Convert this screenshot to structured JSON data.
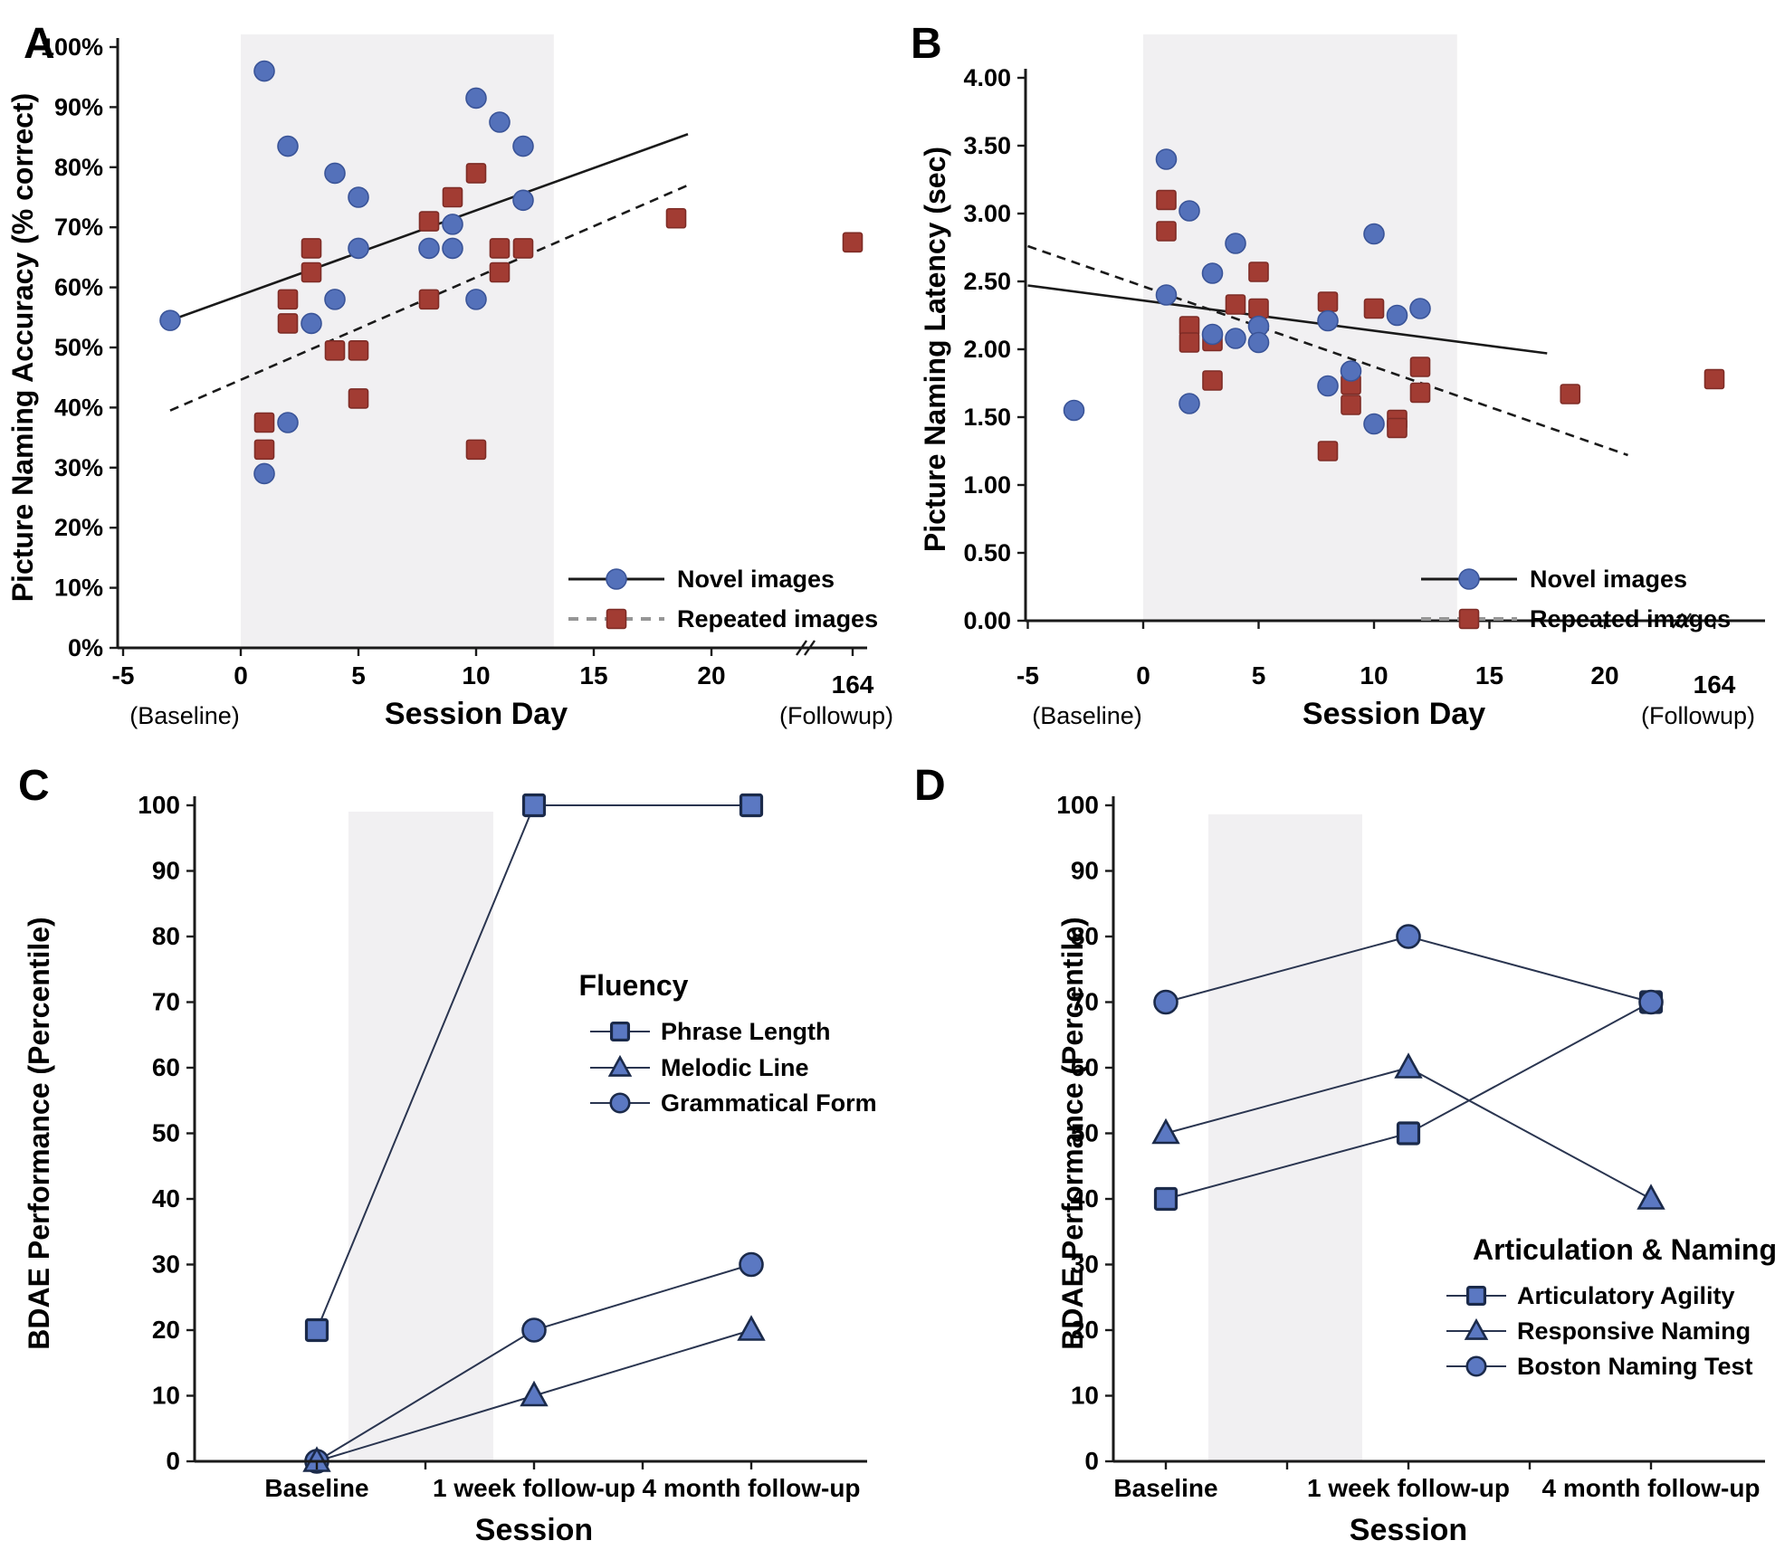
{
  "figure": {
    "background": "#ffffff"
  },
  "colors": {
    "novel_fill": "#5471BA",
    "novel_stroke": "#3A5498",
    "repeated_fill": "#A23C33",
    "repeated_stroke": "#7E2C26",
    "trend_line": "#1a1a1a",
    "legend_dashed": "#969696",
    "band": "#F1F0F2",
    "axis": "#1a1a1a",
    "text": "#000000",
    "bdae_marker_fill": "#5B78C2",
    "bdae_marker_stroke": "#1B2A4A",
    "bdae_line": "#2A3550"
  },
  "chart_data": [
    {
      "id": "A",
      "panel_letter": "A",
      "type": "scatter",
      "ylabel": "Picture Naming Accuracy (% correct)",
      "xlabel": "Session Day",
      "x_sublabel_left": "(Baseline)",
      "x_sublabel_right": "(Followup)",
      "x_ticks": [
        -5,
        0,
        5,
        10,
        15,
        20
      ],
      "x_break_tick": "164",
      "ylim": [
        0,
        100
      ],
      "shaded_band_days": [
        0,
        13.3
      ],
      "y_ticks": [
        {
          "v": 0,
          "label": "0%"
        },
        {
          "v": 10,
          "label": "10%"
        },
        {
          "v": 20,
          "label": "20%"
        },
        {
          "v": 30,
          "label": "30%"
        },
        {
          "v": 40,
          "label": "40%"
        },
        {
          "v": 50,
          "label": "50%"
        },
        {
          "v": 60,
          "label": "60%"
        },
        {
          "v": 70,
          "label": "70%"
        },
        {
          "v": 80,
          "label": "80%"
        },
        {
          "v": 90,
          "label": "90%"
        },
        {
          "v": 100,
          "label": "100%"
        }
      ],
      "series": [
        {
          "name": "Repeated images",
          "marker": "square",
          "line": "dashed",
          "points": [
            [
              1,
              37.5
            ],
            [
              1,
              33
            ],
            [
              2,
              58
            ],
            [
              2,
              54
            ],
            [
              3,
              66.5
            ],
            [
              3,
              62.5
            ],
            [
              4,
              49.5
            ],
            [
              5,
              49.5
            ],
            [
              5,
              41.5
            ],
            [
              8,
              71
            ],
            [
              8,
              58
            ],
            [
              9,
              75
            ],
            [
              10,
              79
            ],
            [
              10,
              33
            ],
            [
              11,
              66.5
            ],
            [
              11,
              62.5
            ],
            [
              12,
              66.5
            ],
            [
              18.5,
              71.5
            ],
            [
              164,
              67.5
            ]
          ]
        },
        {
          "name": "Novel images",
          "marker": "circle",
          "line": "solid",
          "points": [
            [
              -3,
              54.5
            ],
            [
              1,
              96
            ],
            [
              1,
              29
            ],
            [
              2,
              83.5
            ],
            [
              2,
              37.5
            ],
            [
              3,
              54
            ],
            [
              4,
              79
            ],
            [
              4,
              58
            ],
            [
              5,
              75
            ],
            [
              5,
              66.5
            ],
            [
              8,
              66.5
            ],
            [
              9,
              70.5
            ],
            [
              9,
              66.5
            ],
            [
              10,
              91.5
            ],
            [
              10,
              58
            ],
            [
              11,
              87.5
            ],
            [
              12,
              83.5
            ],
            [
              12,
              74.5
            ]
          ]
        }
      ],
      "trend_lines": [
        {
          "style": "solid",
          "points": [
            [
              -3,
              54.5
            ],
            [
              19,
              85.5
            ]
          ]
        },
        {
          "style": "dashed",
          "points": [
            [
              -3,
              39.5
            ],
            [
              19,
              77
            ]
          ]
        }
      ],
      "legend": {
        "entries": [
          {
            "label": "Novel images",
            "marker": "circle",
            "line": "solid"
          },
          {
            "label": "Repeated images",
            "marker": "square",
            "line": "dashed"
          }
        ]
      }
    },
    {
      "id": "B",
      "panel_letter": "B",
      "type": "scatter",
      "ylabel": "Picture Naming Latency (sec)",
      "xlabel": "Session Day",
      "x_sublabel_left": "(Baseline)",
      "x_sublabel_right": "(Followup)",
      "x_ticks": [
        -5,
        0,
        5,
        10,
        15,
        20
      ],
      "x_break_tick": "164",
      "ylim": [
        0,
        4
      ],
      "shaded_band_days": [
        0,
        13.6
      ],
      "y_ticks": [
        {
          "v": 0,
          "label": "0.00"
        },
        {
          "v": 0.5,
          "label": "0.50"
        },
        {
          "v": 1,
          "label": "1.00"
        },
        {
          "v": 1.5,
          "label": "1.50"
        },
        {
          "v": 2,
          "label": "2.00"
        },
        {
          "v": 2.5,
          "label": "2.50"
        },
        {
          "v": 3,
          "label": "3.00"
        },
        {
          "v": 3.5,
          "label": "3.50"
        },
        {
          "v": 4,
          "label": "4.00"
        }
      ],
      "series": [
        {
          "name": "Repeated images",
          "marker": "square",
          "line": "dashed",
          "points": [
            [
              1,
              3.1
            ],
            [
              1,
              2.87
            ],
            [
              2,
              2.17
            ],
            [
              2,
              2.05
            ],
            [
              3,
              2.06
            ],
            [
              3,
              1.77
            ],
            [
              4,
              2.33
            ],
            [
              5,
              2.57
            ],
            [
              5,
              2.3
            ],
            [
              8,
              2.35
            ],
            [
              8,
              1.25
            ],
            [
              9,
              1.74
            ],
            [
              9,
              1.59
            ],
            [
              10,
              2.3
            ],
            [
              11,
              1.48
            ],
            [
              11,
              1.42
            ],
            [
              12,
              1.87
            ],
            [
              12,
              1.68
            ],
            [
              18.5,
              1.67
            ],
            [
              164,
              1.78
            ]
          ]
        },
        {
          "name": "Novel images",
          "marker": "circle",
          "line": "solid",
          "points": [
            [
              -3,
              1.55
            ],
            [
              1,
              3.4
            ],
            [
              1,
              2.4
            ],
            [
              2,
              3.02
            ],
            [
              2,
              1.6
            ],
            [
              3,
              2.56
            ],
            [
              3,
              2.11
            ],
            [
              4,
              2.78
            ],
            [
              4,
              2.08
            ],
            [
              5,
              2.17
            ],
            [
              5,
              2.05
            ],
            [
              8,
              2.21
            ],
            [
              8,
              1.73
            ],
            [
              9,
              1.84
            ],
            [
              10,
              2.85
            ],
            [
              10,
              1.45
            ],
            [
              11,
              2.25
            ],
            [
              12,
              2.3
            ]
          ]
        }
      ],
      "trend_lines": [
        {
          "style": "solid",
          "points": [
            [
              -5,
              2.47
            ],
            [
              17.5,
              1.97
            ]
          ]
        },
        {
          "style": "dashed",
          "points": [
            [
              -5,
              2.76
            ],
            [
              21,
              1.22
            ]
          ]
        }
      ],
      "legend": {
        "entries": [
          {
            "label": "Novel images",
            "marker": "circle",
            "line": "solid"
          },
          {
            "label": "Repeated images",
            "marker": "square",
            "line": "dashed"
          }
        ]
      }
    },
    {
      "id": "C",
      "panel_letter": "C",
      "type": "line",
      "ylabel": "BDAE Performance (Percentile)",
      "xlabel": "Session",
      "categories": [
        "Baseline",
        "1 week follow-up",
        "4 month follow-up"
      ],
      "ylim": [
        0,
        100
      ],
      "y_ticks": [
        0,
        10,
        20,
        30,
        40,
        50,
        60,
        70,
        80,
        90,
        100
      ],
      "legend_title": "Fluency",
      "series": [
        {
          "name": "Phrase Length",
          "marker": "square",
          "values": [
            20,
            100,
            100
          ]
        },
        {
          "name": "Grammatical Form",
          "marker": "circle",
          "values": [
            0,
            20,
            30
          ]
        },
        {
          "name": "Melodic Line",
          "marker": "triangle",
          "values": [
            0,
            10,
            20
          ]
        }
      ],
      "legend_order": [
        0,
        2,
        1
      ]
    },
    {
      "id": "D",
      "panel_letter": "D",
      "type": "line",
      "ylabel": "BDAE Performance (Percentile)",
      "xlabel": "Session",
      "categories": [
        "Baseline",
        "1 week follow-up",
        "4 month follow-up"
      ],
      "ylim": [
        0,
        100
      ],
      "y_ticks": [
        0,
        10,
        20,
        30,
        40,
        50,
        60,
        70,
        80,
        90,
        100
      ],
      "legend_title": "Articulation & Naming",
      "series": [
        {
          "name": "Articulatory Agility",
          "marker": "square",
          "values": [
            40,
            50,
            70
          ]
        },
        {
          "name": "Responsive Naming",
          "marker": "triangle",
          "values": [
            50,
            60,
            40
          ]
        },
        {
          "name": "Boston Naming Test",
          "marker": "circle",
          "values": [
            70,
            80,
            70
          ]
        }
      ],
      "legend_order": [
        0,
        1,
        2
      ]
    }
  ]
}
